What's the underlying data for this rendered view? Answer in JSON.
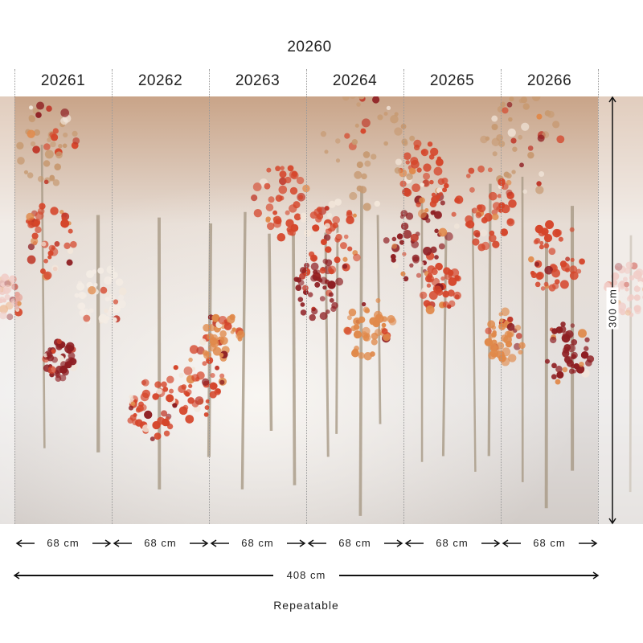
{
  "title": "20260",
  "panels": [
    {
      "code": "20261",
      "width": "68 cm"
    },
    {
      "code": "20262",
      "width": "68 cm"
    },
    {
      "code": "20263",
      "width": "68 cm"
    },
    {
      "code": "20264",
      "width": "68 cm"
    },
    {
      "code": "20265",
      "width": "68 cm"
    },
    {
      "code": "20266",
      "width": "68 cm"
    }
  ],
  "total_width": "408 cm",
  "height": "300 cm",
  "note": "Repeatable",
  "colors": {
    "leaf_red": "#d5452a",
    "leaf_dark": "#8e1e22",
    "leaf_orange": "#e0894a",
    "trunk": "#a89a86",
    "sky": "#d9d3cf",
    "canopy": "#c79a72"
  }
}
